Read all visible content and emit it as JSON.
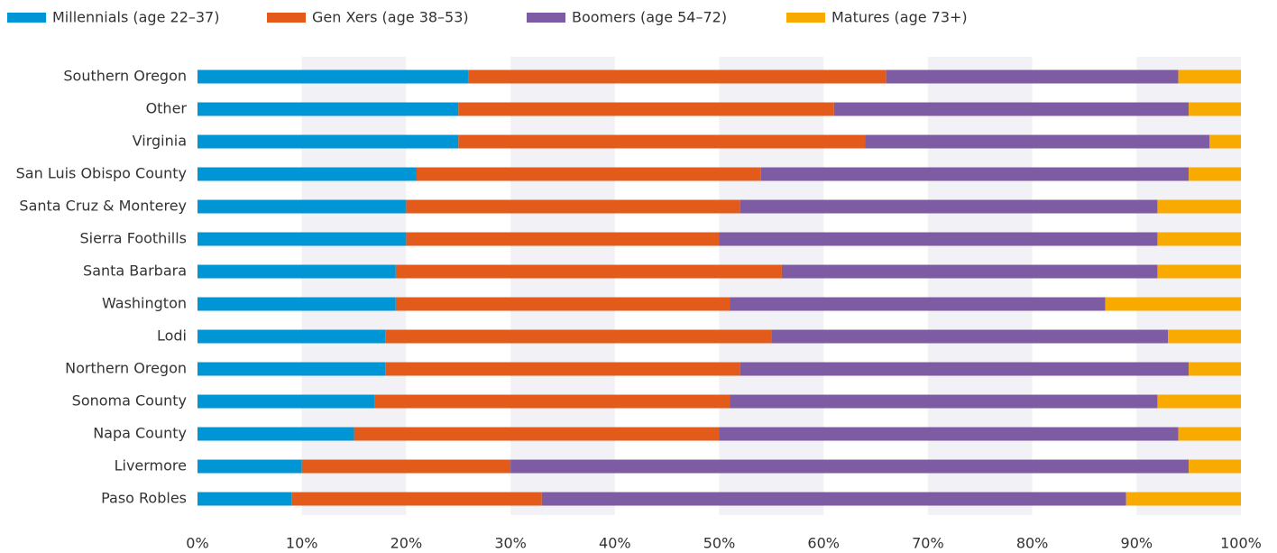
{
  "chart_data": {
    "type": "stacked_barh",
    "categories": [
      "Southern Oregon",
      "Other",
      "Virginia",
      "San Luis Obispo County",
      "Santa Cruz & Monterey",
      "Sierra Foothills",
      "Santa Barbara",
      "Washington",
      "Lodi",
      "Northern Oregon",
      "Sonoma County",
      "Napa County",
      "Livermore",
      "Paso Robles"
    ],
    "series": [
      {
        "name": "Millennials (age 22–37)",
        "color": "#0096d6",
        "values": [
          26,
          25,
          25,
          21,
          20,
          20,
          19,
          19,
          18,
          18,
          17,
          15,
          10,
          9
        ]
      },
      {
        "name": "Gen Xers (age 38–53)",
        "color": "#e35b1b",
        "values": [
          40,
          36,
          39,
          33,
          32,
          30,
          37,
          32,
          37,
          34,
          34,
          35,
          20,
          24
        ]
      },
      {
        "name": "Boomers (age 54–72)",
        "color": "#7e5ca4",
        "values": [
          28,
          34,
          33,
          41,
          40,
          42,
          36,
          36,
          38,
          43,
          41,
          44,
          65,
          56
        ]
      },
      {
        "name": "Matures (age 73+)",
        "color": "#f9aa00",
        "values": [
          6,
          5,
          3,
          5,
          8,
          8,
          8,
          13,
          7,
          5,
          8,
          6,
          5,
          11
        ]
      }
    ],
    "xlim": [
      0,
      100
    ],
    "xticks": [
      {
        "value": 0,
        "label": "0%"
      },
      {
        "value": 10,
        "label": "10%"
      },
      {
        "value": 20,
        "label": "20%"
      },
      {
        "value": 30,
        "label": "30%"
      },
      {
        "value": 40,
        "label": "40%"
      },
      {
        "value": 50,
        "label": "50%"
      },
      {
        "value": 60,
        "label": "60%"
      },
      {
        "value": 70,
        "label": "70%"
      },
      {
        "value": 80,
        "label": "80%"
      },
      {
        "value": 90,
        "label": "90%"
      },
      {
        "value": 100,
        "label": "100%"
      }
    ],
    "grid": true,
    "legend": "top"
  }
}
